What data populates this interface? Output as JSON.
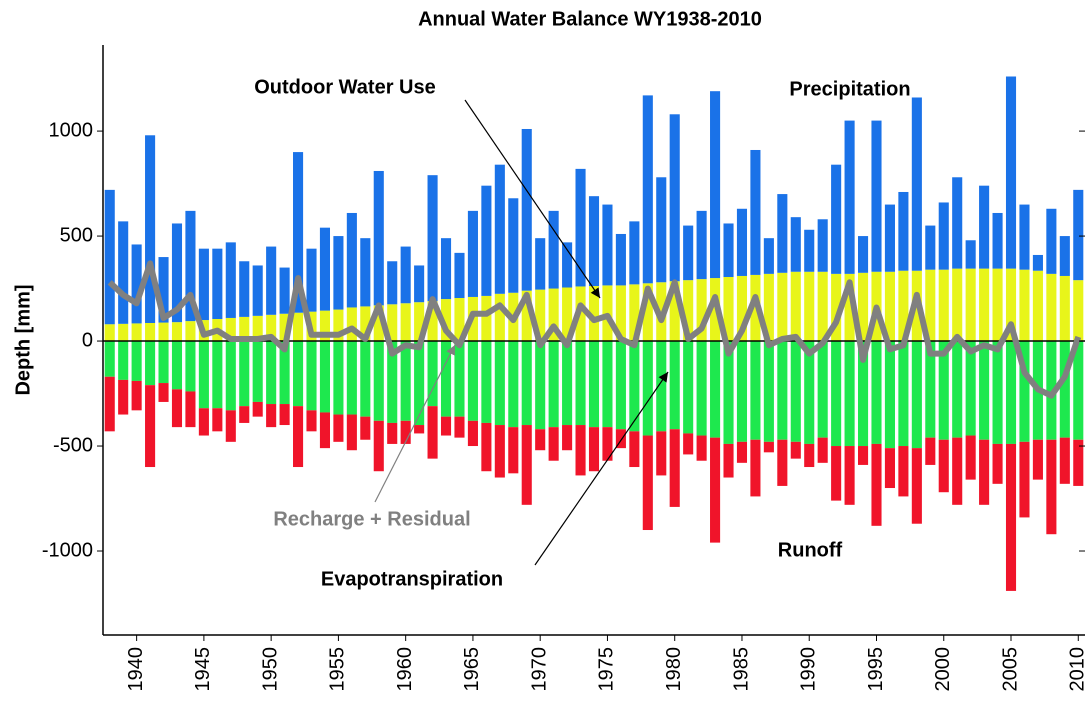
{
  "chart_data": {
    "type": "bar",
    "title": "Annual Water Balance WY1938-2010",
    "y_label": "Depth [mm]",
    "x": [
      1938,
      1939,
      1940,
      1941,
      1942,
      1943,
      1944,
      1945,
      1946,
      1947,
      1948,
      1949,
      1950,
      1951,
      1952,
      1953,
      1954,
      1955,
      1956,
      1957,
      1958,
      1959,
      1960,
      1961,
      1962,
      1963,
      1964,
      1965,
      1966,
      1967,
      1968,
      1969,
      1970,
      1971,
      1972,
      1973,
      1974,
      1975,
      1976,
      1977,
      1978,
      1979,
      1980,
      1981,
      1982,
      1983,
      1984,
      1985,
      1986,
      1987,
      1988,
      1989,
      1990,
      1991,
      1992,
      1993,
      1994,
      1995,
      1996,
      1997,
      1998,
      1999,
      2000,
      2001,
      2002,
      2003,
      2004,
      2005,
      2006,
      2007,
      2008,
      2009,
      2010
    ],
    "xlim": [
      1937.5,
      2010.5
    ],
    "xticks": [
      1940,
      1945,
      1950,
      1955,
      1960,
      1965,
      1970,
      1975,
      1980,
      1985,
      1990,
      1995,
      2000,
      2005,
      2010
    ],
    "ylim": [
      -1400,
      1410
    ],
    "yticks": [
      -1000,
      -500,
      0,
      500,
      1000
    ],
    "series": [
      {
        "name": "Outdoor Water Use",
        "color": "#e8f51a",
        "values": [
          80,
          82,
          84,
          86,
          88,
          90,
          95,
          100,
          105,
          110,
          115,
          120,
          125,
          130,
          135,
          140,
          145,
          150,
          160,
          165,
          170,
          175,
          180,
          185,
          190,
          200,
          205,
          210,
          215,
          225,
          230,
          240,
          245,
          250,
          255,
          260,
          262,
          265,
          265,
          270,
          275,
          280,
          285,
          290,
          295,
          300,
          305,
          310,
          315,
          320,
          325,
          330,
          330,
          330,
          320,
          320,
          325,
          330,
          330,
          335,
          335,
          340,
          340,
          345,
          345,
          345,
          345,
          345,
          340,
          335,
          320,
          310,
          290
        ]
      },
      {
        "name": "Precipitation",
        "color": "#1a72e8",
        "values": [
          640,
          488,
          376,
          894,
          312,
          470,
          525,
          340,
          335,
          360,
          265,
          240,
          325,
          220,
          765,
          300,
          395,
          350,
          450,
          325,
          640,
          205,
          270,
          175,
          600,
          290,
          215,
          410,
          525,
          615,
          450,
          770,
          245,
          370,
          215,
          560,
          428,
          385,
          245,
          300,
          895,
          500,
          795,
          260,
          325,
          890,
          255,
          320,
          595,
          170,
          375,
          260,
          200,
          250,
          520,
          730,
          175,
          720,
          320,
          375,
          825,
          210,
          320,
          435,
          135,
          395,
          265,
          915,
          310,
          75,
          310,
          190,
          430
        ]
      },
      {
        "name": "Evapotranspiration",
        "color": "#1ee84e",
        "values": [
          -170,
          -185,
          -190,
          -210,
          -200,
          -230,
          -240,
          -320,
          -320,
          -330,
          -310,
          -290,
          -300,
          -300,
          -310,
          -330,
          -340,
          -350,
          -350,
          -360,
          -380,
          -390,
          -380,
          -400,
          -310,
          -360,
          -360,
          -380,
          -390,
          -400,
          -410,
          -400,
          -420,
          -410,
          -400,
          -400,
          -410,
          -410,
          -420,
          -430,
          -450,
          -430,
          -420,
          -440,
          -450,
          -460,
          -490,
          -480,
          -470,
          -480,
          -470,
          -480,
          -490,
          -460,
          -500,
          -500,
          -500,
          -490,
          -510,
          -500,
          -510,
          -460,
          -470,
          -460,
          -450,
          -470,
          -490,
          -490,
          -480,
          -470,
          -470,
          -460,
          -470
        ]
      },
      {
        "name": "Runoff",
        "color": "#f0142a",
        "values": [
          -260,
          -165,
          -140,
          -390,
          -90,
          -180,
          -170,
          -130,
          -110,
          -150,
          -80,
          -70,
          -110,
          -100,
          -290,
          -100,
          -170,
          -130,
          -170,
          -110,
          -240,
          -100,
          -110,
          -40,
          -250,
          -90,
          -100,
          -120,
          -230,
          -250,
          -220,
          -380,
          -100,
          -160,
          -120,
          -240,
          -210,
          -160,
          -90,
          -170,
          -450,
          -210,
          -370,
          -100,
          -120,
          -500,
          -160,
          -100,
          -270,
          -50,
          -220,
          -80,
          -110,
          -120,
          -260,
          -280,
          -90,
          -390,
          -190,
          -240,
          -360,
          -130,
          -250,
          -320,
          -210,
          -310,
          -190,
          -700,
          -360,
          -190,
          -450,
          -220,
          -220
        ]
      },
      {
        "name": "Recharge + Residual",
        "type": "line",
        "color": "#808080",
        "values": [
          280,
          220,
          180,
          370,
          110,
          150,
          220,
          30,
          50,
          10,
          10,
          10,
          20,
          -40,
          300,
          30,
          30,
          30,
          60,
          10,
          170,
          -60,
          -20,
          -30,
          200,
          50,
          -20,
          130,
          130,
          170,
          100,
          220,
          -20,
          70,
          -20,
          170,
          100,
          120,
          10,
          -20,
          250,
          100,
          280,
          10,
          60,
          210,
          -60,
          50,
          210,
          -20,
          10,
          20,
          -60,
          -10,
          90,
          280,
          -90,
          160,
          -40,
          -20,
          220,
          -60,
          -60,
          20,
          -50,
          -20,
          -40,
          80,
          -150,
          -230,
          -260,
          -170,
          20
        ]
      }
    ]
  }
}
